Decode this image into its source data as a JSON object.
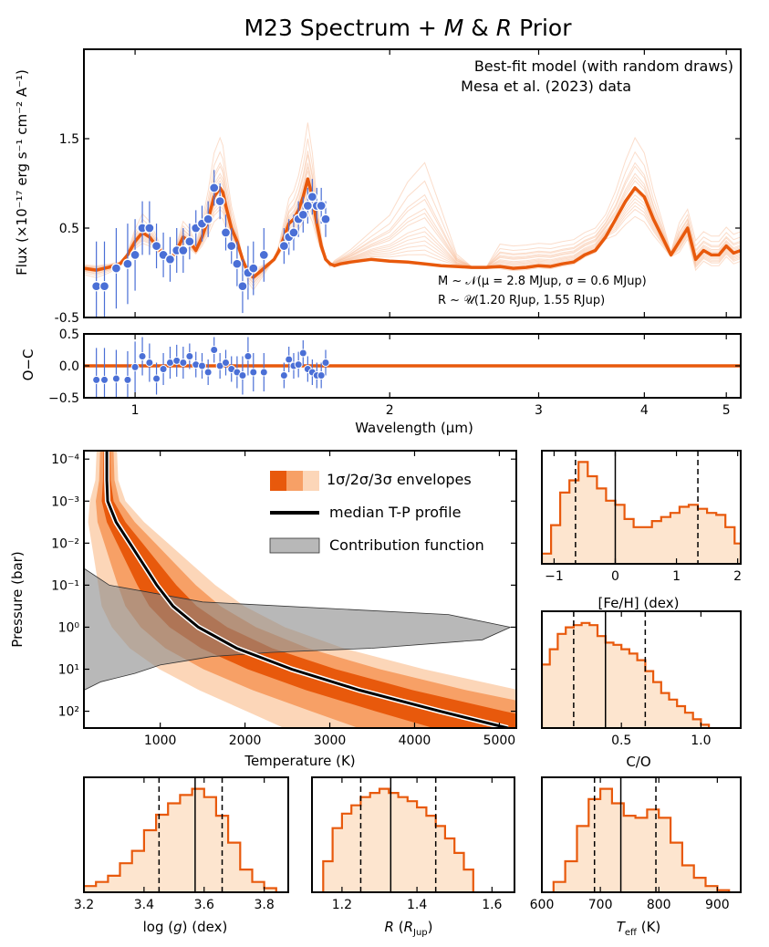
{
  "figure": {
    "title": "M23 Spectrum + M & R Prior",
    "title_parts": [
      "M23 Spectrum + ",
      "M",
      " & ",
      "R",
      " Prior"
    ]
  },
  "colors": {
    "model": "#e8590c",
    "model_light": "#f6b38c",
    "data": "#4a6fd6",
    "env1": "#e8590c",
    "env2": "#f7a066",
    "env3": "#fcd6b8",
    "hist_fill": "#fde5cf",
    "contrib": "#888888"
  },
  "chart_data": [
    {
      "id": "spectrum",
      "type": "line",
      "ylabel": "Flux (×10⁻¹⁷ erg s⁻¹ cm⁻² A⁻¹)",
      "xscale": "log",
      "xlim": [
        0.87,
        5.2
      ],
      "ylim": [
        -0.5,
        2.5
      ],
      "yticks": [
        -0.5,
        0.5,
        1.5
      ],
      "legend": [
        "Best-fit model (with random draws)",
        "Mesa et al. (2023) data"
      ],
      "legend_position": "top-right",
      "annotation": [
        "M ~ 𝒩(μ = 2.8 M_Jup, σ = 0.6 M_Jup)",
        "R ~ 𝒰(1.20 R_Jup, 1.55 R_Jup)"
      ],
      "annotation_display": [
        "M ~ 𝒩(μ = 2.8 MJup, σ = 0.6 MJup)",
        "R ~ 𝒰(1.20 RJup, 1.55 RJup)"
      ],
      "model": {
        "x": [
          0.87,
          0.9,
          0.93,
          0.96,
          0.98,
          1.0,
          1.02,
          1.04,
          1.06,
          1.08,
          1.1,
          1.12,
          1.14,
          1.16,
          1.18,
          1.2,
          1.22,
          1.24,
          1.26,
          1.27,
          1.28,
          1.3,
          1.32,
          1.34,
          1.36,
          1.38,
          1.4,
          1.42,
          1.44,
          1.46,
          1.48,
          1.5,
          1.52,
          1.54,
          1.56,
          1.58,
          1.6,
          1.62,
          1.64,
          1.66,
          1.68,
          1.7,
          1.72,
          1.75,
          1.8,
          1.9,
          2.0,
          2.1,
          2.2,
          2.3,
          2.4,
          2.5,
          2.6,
          2.7,
          2.8,
          2.9,
          3.0,
          3.1,
          3.2,
          3.3,
          3.4,
          3.5,
          3.6,
          3.7,
          3.8,
          3.9,
          4.0,
          4.1,
          4.2,
          4.3,
          4.4,
          4.5,
          4.6,
          4.7,
          4.8,
          4.9,
          5.0,
          5.1,
          5.2
        ],
        "y": [
          0.05,
          0.03,
          0.06,
          0.1,
          0.2,
          0.35,
          0.45,
          0.4,
          0.3,
          0.2,
          0.15,
          0.25,
          0.4,
          0.35,
          0.25,
          0.4,
          0.6,
          0.85,
          0.95,
          0.9,
          0.75,
          0.5,
          0.35,
          0.15,
          0.0,
          -0.05,
          0.0,
          0.05,
          0.1,
          0.15,
          0.25,
          0.4,
          0.55,
          0.6,
          0.7,
          0.85,
          1.05,
          0.85,
          0.55,
          0.3,
          0.15,
          0.1,
          0.08,
          0.1,
          0.12,
          0.15,
          0.13,
          0.12,
          0.1,
          0.08,
          0.07,
          0.06,
          0.06,
          0.07,
          0.05,
          0.06,
          0.08,
          0.07,
          0.1,
          0.12,
          0.2,
          0.25,
          0.4,
          0.6,
          0.8,
          0.95,
          0.85,
          0.6,
          0.4,
          0.2,
          0.35,
          0.5,
          0.15,
          0.25,
          0.2,
          0.2,
          0.3,
          0.22,
          0.25
        ]
      },
      "draws_peak_scale": [
        0.6,
        0.7,
        0.8,
        0.9,
        1.0,
        1.1,
        1.2,
        1.35,
        1.5,
        1.7,
        0.75,
        0.95,
        1.15,
        1.3,
        0.85
      ],
      "data": {
        "x": [
          0.9,
          0.92,
          0.95,
          0.98,
          1.0,
          1.02,
          1.04,
          1.06,
          1.08,
          1.1,
          1.12,
          1.14,
          1.16,
          1.18,
          1.2,
          1.22,
          1.24,
          1.26,
          1.28,
          1.3,
          1.32,
          1.34,
          1.36,
          1.38,
          1.42,
          1.5,
          1.52,
          1.54,
          1.56,
          1.58,
          1.6,
          1.62,
          1.64,
          1.66,
          1.68
        ],
        "y": [
          -0.15,
          -0.15,
          0.05,
          0.1,
          0.2,
          0.5,
          0.5,
          0.3,
          0.2,
          0.15,
          0.25,
          0.25,
          0.35,
          0.5,
          0.55,
          0.6,
          0.95,
          0.8,
          0.45,
          0.3,
          0.1,
          -0.15,
          0.0,
          0.05,
          0.2,
          0.3,
          0.4,
          0.45,
          0.6,
          0.65,
          0.75,
          0.85,
          0.75,
          0.75,
          0.6
        ],
        "yerr": [
          0.5,
          0.5,
          0.45,
          0.45,
          0.4,
          0.3,
          0.3,
          0.25,
          0.25,
          0.25,
          0.25,
          0.25,
          0.2,
          0.2,
          0.2,
          0.2,
          0.2,
          0.2,
          0.2,
          0.2,
          0.25,
          0.3,
          0.3,
          0.3,
          0.3,
          0.2,
          0.2,
          0.2,
          0.2,
          0.2,
          0.2,
          0.2,
          0.2,
          0.2,
          0.2
        ]
      }
    },
    {
      "id": "residuals",
      "type": "scatter",
      "ylabel": "O−C",
      "xlabel": "Wavelength (μm)",
      "xscale": "log",
      "xlim": [
        0.87,
        5.2
      ],
      "ylim": [
        -0.5,
        0.5
      ],
      "yticks": [
        -0.5,
        0.0,
        0.5
      ],
      "ytick_labels": [
        "−0.5",
        "0.0",
        "0.5"
      ],
      "xticks": [
        1,
        2,
        3,
        4,
        5
      ],
      "xtick_labels": [
        "1",
        "2",
        "3",
        "4",
        "5"
      ],
      "zero_line": 0.0,
      "data": {
        "x": [
          0.9,
          0.92,
          0.95,
          0.98,
          1.0,
          1.02,
          1.04,
          1.06,
          1.08,
          1.1,
          1.12,
          1.14,
          1.16,
          1.18,
          1.2,
          1.22,
          1.24,
          1.26,
          1.28,
          1.3,
          1.32,
          1.34,
          1.36,
          1.38,
          1.42,
          1.5,
          1.52,
          1.54,
          1.56,
          1.58,
          1.6,
          1.62,
          1.64,
          1.66,
          1.68
        ],
        "y": [
          -0.22,
          -0.22,
          -0.2,
          -0.22,
          -0.02,
          0.15,
          0.05,
          -0.2,
          -0.05,
          0.05,
          0.08,
          0.05,
          0.15,
          0.02,
          0.0,
          -0.1,
          0.25,
          0.0,
          0.05,
          -0.05,
          -0.1,
          -0.15,
          0.15,
          -0.1,
          -0.1,
          -0.15,
          0.1,
          0.0,
          0.02,
          0.2,
          -0.05,
          -0.1,
          -0.15,
          -0.15,
          0.05
        ],
        "yerr": [
          0.5,
          0.5,
          0.45,
          0.45,
          0.4,
          0.3,
          0.3,
          0.25,
          0.25,
          0.25,
          0.25,
          0.25,
          0.2,
          0.2,
          0.2,
          0.2,
          0.2,
          0.2,
          0.2,
          0.2,
          0.25,
          0.3,
          0.3,
          0.3,
          0.3,
          0.2,
          0.2,
          0.2,
          0.2,
          0.2,
          0.2,
          0.2,
          0.2,
          0.2,
          0.2
        ]
      }
    },
    {
      "id": "tp_profile",
      "type": "area",
      "xlabel": "Temperature (K)",
      "ylabel": "Pressure (bar)",
      "xlim": [
        100,
        5200
      ],
      "xticks": [
        1000,
        2000,
        3000,
        4000,
        5000
      ],
      "xtick_labels": [
        "1000",
        "2000",
        "3000",
        "4000",
        "5000"
      ],
      "yscale": "log",
      "ylim_log10": [
        -4.2,
        2.4
      ],
      "yaxis_inverted": true,
      "yticks_log10": [
        -4,
        -3,
        -2,
        -1,
        0,
        1,
        2
      ],
      "ytick_labels": [
        "10⁻⁴",
        "10⁻³",
        "10⁻²",
        "10⁻¹",
        "10⁰",
        "10¹",
        "10²"
      ],
      "legend": [
        "1σ/2σ/3σ envelopes",
        "median T-P profile",
        "Contribution function"
      ],
      "legend_position": "upper-right",
      "log10_pressure": [
        -4.2,
        -3.5,
        -3.0,
        -2.5,
        -2.0,
        -1.5,
        -1.0,
        -0.5,
        0.0,
        0.5,
        1.0,
        1.5,
        2.0,
        2.4
      ],
      "median_T": [
        370,
        370,
        380,
        480,
        640,
        800,
        960,
        1150,
        1450,
        1900,
        2550,
        3350,
        4300,
        5100
      ],
      "sigma_T": [
        40,
        45,
        70,
        110,
        150,
        190,
        230,
        280,
        340,
        420,
        520,
        630,
        760,
        880
      ],
      "contribution_function": {
        "log10_pressure": [
          -1.4,
          -1.0,
          -0.6,
          -0.3,
          0.0,
          0.3,
          0.5,
          0.6,
          0.7,
          0.8,
          0.9,
          1.1,
          1.3,
          1.5
        ],
        "right_edge_T": [
          100,
          400,
          1500,
          4400,
          5130,
          4800,
          3500,
          2300,
          1600,
          1300,
          1000,
          700,
          300,
          100
        ]
      }
    },
    {
      "id": "hist_feh",
      "type": "bar",
      "xlabel": "[Fe/H] (dex)",
      "xlim": [
        -1.2,
        2.05
      ],
      "xticks": [
        -1,
        0,
        1,
        2
      ],
      "xtick_labels": [
        "−1",
        "0",
        "1",
        "2"
      ],
      "bin_edges": [
        -1.2,
        -1.05,
        -0.9,
        -0.75,
        -0.6,
        -0.45,
        -0.3,
        -0.15,
        0.0,
        0.15,
        0.3,
        0.45,
        0.6,
        0.75,
        0.9,
        1.05,
        1.2,
        1.35,
        1.5,
        1.65,
        1.8,
        1.95,
        2.05
      ],
      "counts": [
        10,
        38,
        70,
        82,
        100,
        86,
        74,
        62,
        58,
        44,
        36,
        36,
        42,
        46,
        50,
        56,
        58,
        54,
        50,
        48,
        36,
        20
      ],
      "median": 0.0,
      "quantiles": [
        -0.65,
        1.35
      ]
    },
    {
      "id": "hist_co",
      "type": "bar",
      "xlabel": "C/O",
      "xlim": [
        0.0,
        1.25
      ],
      "xticks": [
        0.5,
        1.0
      ],
      "xtick_labels": [
        "0.5",
        "1.0"
      ],
      "bin_edges": [
        0.0,
        0.05,
        0.1,
        0.15,
        0.2,
        0.25,
        0.3,
        0.35,
        0.4,
        0.45,
        0.5,
        0.55,
        0.6,
        0.65,
        0.7,
        0.75,
        0.8,
        0.85,
        0.9,
        0.95,
        1.0,
        1.05
      ],
      "counts": [
        58,
        72,
        86,
        92,
        94,
        96,
        94,
        84,
        78,
        76,
        72,
        68,
        62,
        52,
        42,
        32,
        26,
        20,
        14,
        8,
        3
      ],
      "median": 0.4,
      "quantiles": [
        0.2,
        0.65
      ]
    },
    {
      "id": "hist_logg",
      "type": "bar",
      "xlabel": "log (g) (dex)",
      "xlim": [
        3.2,
        3.88
      ],
      "xticks": [
        3.2,
        3.4,
        3.6,
        3.8
      ],
      "xtick_labels": [
        "3.2",
        "3.4",
        "3.6",
        "3.8"
      ],
      "bin_edges": [
        3.2,
        3.24,
        3.28,
        3.32,
        3.36,
        3.4,
        3.44,
        3.48,
        3.52,
        3.56,
        3.6,
        3.64,
        3.68,
        3.72,
        3.76,
        3.8,
        3.84
      ],
      "counts": [
        6,
        10,
        16,
        28,
        40,
        60,
        75,
        86,
        94,
        100,
        92,
        74,
        48,
        22,
        10,
        4
      ],
      "median": 3.57,
      "quantiles": [
        3.45,
        3.66
      ]
    },
    {
      "id": "hist_r",
      "type": "bar",
      "xlabel": "R (RJup)",
      "xlim": [
        1.12,
        1.66
      ],
      "xticks": [
        1.2,
        1.4,
        1.6
      ],
      "xtick_labels": [
        "1.2",
        "1.4",
        "1.6"
      ],
      "bin_edges": [
        1.15,
        1.175,
        1.2,
        1.225,
        1.25,
        1.275,
        1.3,
        1.325,
        1.35,
        1.375,
        1.4,
        1.425,
        1.45,
        1.475,
        1.5,
        1.525,
        1.55
      ],
      "counts": [
        30,
        62,
        76,
        84,
        92,
        96,
        100,
        96,
        92,
        88,
        82,
        74,
        64,
        52,
        38,
        22
      ],
      "median": 1.33,
      "quantiles": [
        1.25,
        1.45
      ]
    },
    {
      "id": "hist_teff",
      "type": "bar",
      "xlabel": "Teff (K)",
      "xlim": [
        600,
        940
      ],
      "xticks": [
        600,
        700,
        800,
        900
      ],
      "xtick_labels": [
        "600",
        "700",
        "800",
        "900"
      ],
      "bin_edges": [
        620,
        640,
        660,
        680,
        700,
        720,
        740,
        760,
        780,
        800,
        820,
        840,
        860,
        880,
        900,
        920
      ],
      "counts": [
        10,
        30,
        64,
        90,
        100,
        86,
        74,
        72,
        80,
        72,
        48,
        26,
        14,
        6,
        2
      ],
      "median": 735,
      "quantiles": [
        690,
        795
      ]
    }
  ]
}
